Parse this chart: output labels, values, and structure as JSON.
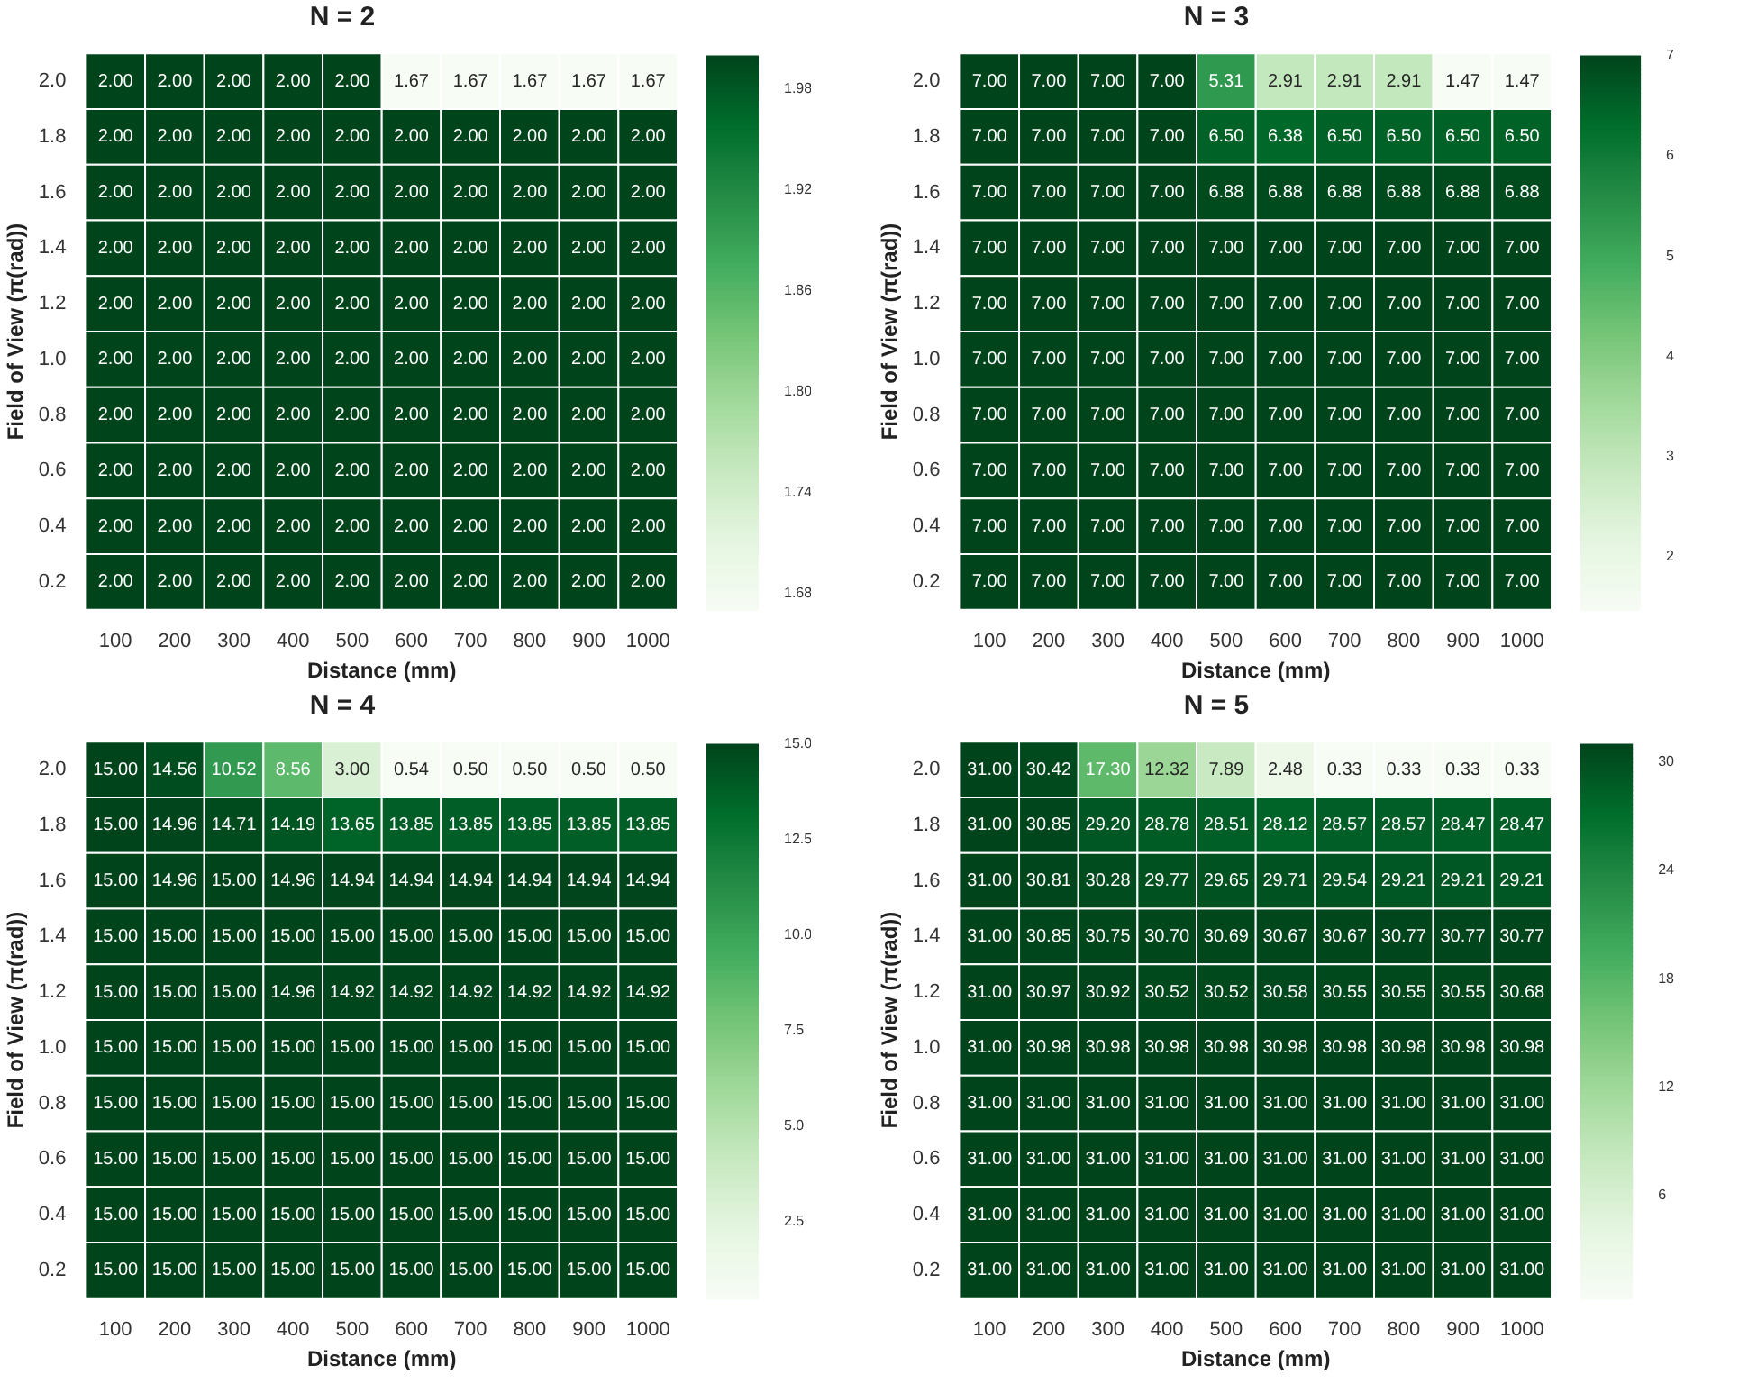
{
  "chart_data": [
    {
      "type": "heatmap",
      "title": "N = 2",
      "xlabel": "Distance (mm)",
      "ylabel": "Field of View (π(rad))",
      "categories": [
        "100",
        "200",
        "300",
        "400",
        "500",
        "600",
        "700",
        "800",
        "900",
        "1000"
      ],
      "y_categories": [
        "2.0",
        "1.8",
        "1.6",
        "1.4",
        "1.2",
        "1.0",
        "0.8",
        "0.6",
        "0.4",
        "0.2"
      ],
      "cells": [
        [
          2,
          2,
          2,
          2,
          2,
          1.67,
          1.67,
          1.67,
          1.67,
          1.67
        ],
        [
          2,
          2,
          2,
          2,
          2,
          2,
          2,
          2,
          2,
          2
        ],
        [
          2,
          2,
          2,
          2,
          2,
          2,
          2,
          2,
          2,
          2
        ],
        [
          2,
          2,
          2,
          2,
          2,
          2,
          2,
          2,
          2,
          2
        ],
        [
          2,
          2,
          2,
          2,
          2,
          2,
          2,
          2,
          2,
          2
        ],
        [
          2,
          2,
          2,
          2,
          2,
          2,
          2,
          2,
          2,
          2
        ],
        [
          2,
          2,
          2,
          2,
          2,
          2,
          2,
          2,
          2,
          2
        ],
        [
          2,
          2,
          2,
          2,
          2,
          2,
          2,
          2,
          2,
          2
        ],
        [
          2,
          2,
          2,
          2,
          2,
          2,
          2,
          2,
          2,
          2
        ],
        [
          2,
          2,
          2,
          2,
          2,
          2,
          2,
          2,
          2,
          2
        ]
      ],
      "cell_labels": [
        [
          "2.00",
          "2.00",
          "2.00",
          "2.00",
          "2.00",
          "1.67",
          "1.67",
          "1.67",
          "1.67",
          "1.67"
        ],
        [
          "2.00",
          "2.00",
          "2.00",
          "2.00",
          "2.00",
          "2.00",
          "2.00",
          "2.00",
          "2.00",
          "2.00"
        ],
        [
          "2.00",
          "2.00",
          "2.00",
          "2.00",
          "2.00",
          "2.00",
          "2.00",
          "2.00",
          "2.00",
          "2.00"
        ],
        [
          "2.00",
          "2.00",
          "2.00",
          "2.00",
          "2.00",
          "2.00",
          "2.00",
          "2.00",
          "2.00",
          "2.00"
        ],
        [
          "2.00",
          "2.00",
          "2.00",
          "2.00",
          "2.00",
          "2.00",
          "2.00",
          "2.00",
          "2.00",
          "2.00"
        ],
        [
          "2.00",
          "2.00",
          "2.00",
          "2.00",
          "2.00",
          "2.00",
          "2.00",
          "2.00",
          "2.00",
          "2.00"
        ],
        [
          "2.00",
          "2.00",
          "2.00",
          "2.00",
          "2.00",
          "2.00",
          "2.00",
          "2.00",
          "2.00",
          "2.00"
        ],
        [
          "2.00",
          "2.00",
          "2.00",
          "2.00",
          "2.00",
          "2.00",
          "2.00",
          "2.00",
          "2.00",
          "2.00"
        ],
        [
          "2.00",
          "2.00",
          "2.00",
          "2.00",
          "2.00",
          "2.00",
          "2.00",
          "2.00",
          "2.00",
          "2.00"
        ],
        [
          "2.00",
          "2.00",
          "2.00",
          "2.00",
          "2.00",
          "2.00",
          "2.00",
          "2.00",
          "2.00",
          "2.00"
        ]
      ],
      "clim": [
        1.67,
        2
      ],
      "cticks": [
        1.68,
        1.74,
        {
          "value": 1.8,
          "label": "1.80"
        },
        1.86,
        1.92,
        1.98
      ]
    },
    {
      "type": "heatmap",
      "title": "N = 3",
      "xlabel": "Distance (mm)",
      "ylabel": "Field of View (π(rad))",
      "categories": [
        "100",
        "200",
        "300",
        "400",
        "500",
        "600",
        "700",
        "800",
        "900",
        "1000"
      ],
      "y_categories": [
        "2.0",
        "1.8",
        "1.6",
        "1.4",
        "1.2",
        "1.0",
        "0.8",
        "0.6",
        "0.4",
        "0.2"
      ],
      "cells": [
        [
          7,
          7,
          7,
          7,
          5.31,
          2.91,
          2.91,
          2.91,
          1.47,
          1.47
        ],
        [
          7,
          7,
          7,
          7,
          6.5,
          6.38,
          6.5,
          6.5,
          6.5,
          6.5
        ],
        [
          7,
          7,
          7,
          7,
          6.88,
          6.88,
          6.88,
          6.88,
          6.88,
          6.88
        ],
        [
          7,
          7,
          7,
          7,
          7,
          7,
          7,
          7,
          7,
          7
        ],
        [
          7,
          7,
          7,
          7,
          7,
          7,
          7,
          7,
          7,
          7
        ],
        [
          7,
          7,
          7,
          7,
          7,
          7,
          7,
          7,
          7,
          7
        ],
        [
          7,
          7,
          7,
          7,
          7,
          7,
          7,
          7,
          7,
          7
        ],
        [
          7,
          7,
          7,
          7,
          7,
          7,
          7,
          7,
          7,
          7
        ],
        [
          7,
          7,
          7,
          7,
          7,
          7,
          7,
          7,
          7,
          7
        ],
        [
          7,
          7,
          7,
          7,
          7,
          7,
          7,
          7,
          7,
          7
        ]
      ],
      "cell_labels": [
        [
          "7.00",
          "7.00",
          "7.00",
          "7.00",
          "5.31",
          "2.91",
          "2.91",
          "2.91",
          "1.47",
          "1.47"
        ],
        [
          "7.00",
          "7.00",
          "7.00",
          "7.00",
          "6.50",
          "6.38",
          "6.50",
          "6.50",
          "6.50",
          "6.50"
        ],
        [
          "7.00",
          "7.00",
          "7.00",
          "7.00",
          "6.88",
          "6.88",
          "6.88",
          "6.88",
          "6.88",
          "6.88"
        ],
        [
          "7.00",
          "7.00",
          "7.00",
          "7.00",
          "7.00",
          "7.00",
          "7.00",
          "7.00",
          "7.00",
          "7.00"
        ],
        [
          "7.00",
          "7.00",
          "7.00",
          "7.00",
          "7.00",
          "7.00",
          "7.00",
          "7.00",
          "7.00",
          "7.00"
        ],
        [
          "7.00",
          "7.00",
          "7.00",
          "7.00",
          "7.00",
          "7.00",
          "7.00",
          "7.00",
          "7.00",
          "7.00"
        ],
        [
          "7.00",
          "7.00",
          "7.00",
          "7.00",
          "7.00",
          "7.00",
          "7.00",
          "7.00",
          "7.00",
          "7.00"
        ],
        [
          "7.00",
          "7.00",
          "7.00",
          "7.00",
          "7.00",
          "7.00",
          "7.00",
          "7.00",
          "7.00",
          "7.00"
        ],
        [
          "7.00",
          "7.00",
          "7.00",
          "7.00",
          "7.00",
          "7.00",
          "7.00",
          "7.00",
          "7.00",
          "7.00"
        ],
        [
          "7.00",
          "7.00",
          "7.00",
          "7.00",
          "7.00",
          "7.00",
          "7.00",
          "7.00",
          "7.00",
          "7.00"
        ]
      ],
      "clim": [
        1.47,
        7
      ],
      "cticks": [
        2,
        3,
        4,
        5,
        6,
        7
      ]
    },
    {
      "type": "heatmap",
      "title": "N = 4",
      "xlabel": "Distance (mm)",
      "ylabel": "Field of View (π(rad))",
      "categories": [
        "100",
        "200",
        "300",
        "400",
        "500",
        "600",
        "700",
        "800",
        "900",
        "1000"
      ],
      "y_categories": [
        "2.0",
        "1.8",
        "1.6",
        "1.4",
        "1.2",
        "1.0",
        "0.8",
        "0.6",
        "0.4",
        "0.2"
      ],
      "cells": [
        [
          15,
          14.56,
          10.52,
          8.56,
          3,
          0.54,
          0.5,
          0.5,
          0.5,
          0.5
        ],
        [
          15,
          14.96,
          14.71,
          14.19,
          13.65,
          13.85,
          13.85,
          13.85,
          13.85,
          13.85
        ],
        [
          15,
          14.96,
          15,
          14.96,
          14.94,
          14.94,
          14.94,
          14.94,
          14.94,
          14.94
        ],
        [
          15,
          15,
          15,
          15,
          15,
          15,
          15,
          15,
          15,
          15
        ],
        [
          15,
          15,
          15,
          14.96,
          14.92,
          14.92,
          14.92,
          14.92,
          14.92,
          14.92
        ],
        [
          15,
          15,
          15,
          15,
          15,
          15,
          15,
          15,
          15,
          15
        ],
        [
          15,
          15,
          15,
          15,
          15,
          15,
          15,
          15,
          15,
          15
        ],
        [
          15,
          15,
          15,
          15,
          15,
          15,
          15,
          15,
          15,
          15
        ],
        [
          15,
          15,
          15,
          15,
          15,
          15,
          15,
          15,
          15,
          15
        ],
        [
          15,
          15,
          15,
          15,
          15,
          15,
          15,
          15,
          15,
          15
        ]
      ],
      "cell_labels": [
        [
          "15.00",
          "14.56",
          "10.52",
          "8.56",
          "3.00",
          "0.54",
          "0.50",
          "0.50",
          "0.50",
          "0.50"
        ],
        [
          "15.00",
          "14.96",
          "14.71",
          "14.19",
          "13.65",
          "13.85",
          "13.85",
          "13.85",
          "13.85",
          "13.85"
        ],
        [
          "15.00",
          "14.96",
          "15.00",
          "14.96",
          "14.94",
          "14.94",
          "14.94",
          "14.94",
          "14.94",
          "14.94"
        ],
        [
          "15.00",
          "15.00",
          "15.00",
          "15.00",
          "15.00",
          "15.00",
          "15.00",
          "15.00",
          "15.00",
          "15.00"
        ],
        [
          "15.00",
          "15.00",
          "15.00",
          "14.96",
          "14.92",
          "14.92",
          "14.92",
          "14.92",
          "14.92",
          "14.92"
        ],
        [
          "15.00",
          "15.00",
          "15.00",
          "15.00",
          "15.00",
          "15.00",
          "15.00",
          "15.00",
          "15.00",
          "15.00"
        ],
        [
          "15.00",
          "15.00",
          "15.00",
          "15.00",
          "15.00",
          "15.00",
          "15.00",
          "15.00",
          "15.00",
          "15.00"
        ],
        [
          "15.00",
          "15.00",
          "15.00",
          "15.00",
          "15.00",
          "15.00",
          "15.00",
          "15.00",
          "15.00",
          "15.00"
        ],
        [
          "15.00",
          "15.00",
          "15.00",
          "15.00",
          "15.00",
          "15.00",
          "15.00",
          "15.00",
          "15.00",
          "15.00"
        ],
        [
          "15.00",
          "15.00",
          "15.00",
          "15.00",
          "15.00",
          "15.00",
          "15.00",
          "15.00",
          "15.00",
          "15.00"
        ]
      ],
      "clim": [
        0.5,
        15
      ],
      "cticks": [
        {
          "value": 2.5,
          "label": "2.5"
        },
        {
          "value": 5,
          "label": "5.0"
        },
        {
          "value": 7.5,
          "label": "7.5"
        },
        {
          "value": 10,
          "label": "10.0"
        },
        {
          "value": 12.5,
          "label": "12.5"
        },
        {
          "value": 15,
          "label": "15.0"
        }
      ]
    },
    {
      "type": "heatmap",
      "title": "N = 5",
      "xlabel": "Distance (mm)",
      "ylabel": "Field of View (π(rad))",
      "categories": [
        "100",
        "200",
        "300",
        "400",
        "500",
        "600",
        "700",
        "800",
        "900",
        "1000"
      ],
      "y_categories": [
        "2.0",
        "1.8",
        "1.6",
        "1.4",
        "1.2",
        "1.0",
        "0.8",
        "0.6",
        "0.4",
        "0.2"
      ],
      "cells": [
        [
          31,
          30.42,
          17.3,
          12.32,
          7.89,
          2.48,
          0.33,
          0.33,
          0.33,
          0.33
        ],
        [
          31,
          30.85,
          29.2,
          28.78,
          28.51,
          28.12,
          28.57,
          28.57,
          28.47,
          28.47
        ],
        [
          31,
          30.81,
          30.28,
          29.77,
          29.65,
          29.71,
          29.54,
          29.21,
          29.21,
          29.21
        ],
        [
          31,
          30.85,
          30.75,
          30.7,
          30.69,
          30.67,
          30.67,
          30.77,
          30.77,
          30.77
        ],
        [
          31,
          30.97,
          30.92,
          30.52,
          30.52,
          30.58,
          30.55,
          30.55,
          30.55,
          30.68
        ],
        [
          31,
          30.98,
          30.98,
          30.98,
          30.98,
          30.98,
          30.98,
          30.98,
          30.98,
          30.98
        ],
        [
          31,
          31,
          31,
          31,
          31,
          31,
          31,
          31,
          31,
          31
        ],
        [
          31,
          31,
          31,
          31,
          31,
          31,
          31,
          31,
          31,
          31
        ],
        [
          31,
          31,
          31,
          31,
          31,
          31,
          31,
          31,
          31,
          31
        ],
        [
          31,
          31,
          31,
          31,
          31,
          31,
          31,
          31,
          31,
          31
        ]
      ],
      "cell_labels": [
        [
          "31.00",
          "30.42",
          "17.30",
          "12.32",
          "7.89",
          "2.48",
          "0.33",
          "0.33",
          "0.33",
          "0.33"
        ],
        [
          "31.00",
          "30.85",
          "29.20",
          "28.78",
          "28.51",
          "28.12",
          "28.57",
          "28.57",
          "28.47",
          "28.47"
        ],
        [
          "31.00",
          "30.81",
          "30.28",
          "29.77",
          "29.65",
          "29.71",
          "29.54",
          "29.21",
          "29.21",
          "29.21"
        ],
        [
          "31.00",
          "30.85",
          "30.75",
          "30.70",
          "30.69",
          "30.67",
          "30.67",
          "30.77",
          "30.77",
          "30.77"
        ],
        [
          "31.00",
          "30.97",
          "30.92",
          "30.52",
          "30.52",
          "30.58",
          "30.55",
          "30.55",
          "30.55",
          "30.68"
        ],
        [
          "31.00",
          "30.98",
          "30.98",
          "30.98",
          "30.98",
          "30.98",
          "30.98",
          "30.98",
          "30.98",
          "30.98"
        ],
        [
          "31.00",
          "31.00",
          "31.00",
          "31.00",
          "31.00",
          "31.00",
          "31.00",
          "31.00",
          "31.00",
          "31.00"
        ],
        [
          "31.00",
          "31.00",
          "31.00",
          "31.00",
          "31.00",
          "31.00",
          "31.00",
          "31.00",
          "31.00",
          "31.00"
        ],
        [
          "31.00",
          "31.00",
          "31.00",
          "31.00",
          "31.00",
          "31.00",
          "31.00",
          "31.00",
          "31.00",
          "31.00"
        ],
        [
          "31.00",
          "31.00",
          "31.00",
          "31.00",
          "31.00",
          "31.00",
          "31.00",
          "31.00",
          "31.00",
          "31.00"
        ]
      ],
      "clim": [
        0.33,
        31
      ],
      "cticks": [
        6,
        12,
        18,
        24,
        30
      ]
    }
  ]
}
